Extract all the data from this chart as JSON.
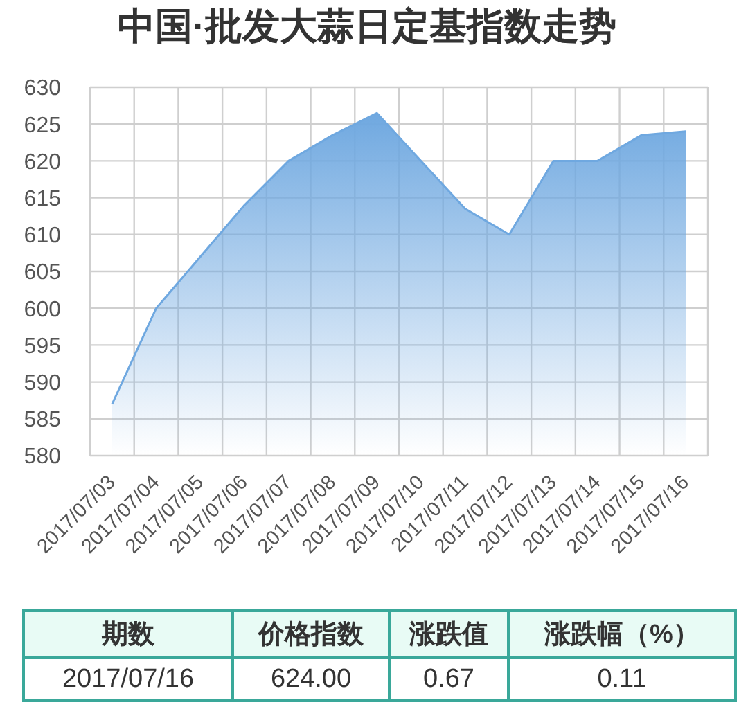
{
  "chart_data": [
    {
      "type": "area",
      "title": "中国·批发大蒜日定基指数走势",
      "categories": [
        "2017/07/03",
        "2017/07/04",
        "2017/07/05",
        "2017/07/06",
        "2017/07/07",
        "2017/07/08",
        "2017/07/09",
        "2017/07/10",
        "2017/07/11",
        "2017/07/12",
        "2017/07/13",
        "2017/07/14",
        "2017/07/15",
        "2017/07/16"
      ],
      "values": [
        587,
        600,
        607,
        614,
        620,
        623.5,
        626.5,
        620,
        613.5,
        610,
        620,
        620,
        623.5,
        624
      ],
      "color": "#6fa8e0",
      "ylim": [
        580,
        630
      ],
      "yticks": [
        580,
        585,
        590,
        595,
        600,
        605,
        610,
        615,
        620,
        625,
        630
      ],
      "grid": true
    },
    {
      "type": "other",
      "categories": [
        "期数",
        "价格指数",
        "涨跌值",
        "涨跌幅（%）"
      ],
      "annotations": [
        "2017/07/16",
        "624.00",
        "0.67",
        "0.11"
      ]
    }
  ]
}
